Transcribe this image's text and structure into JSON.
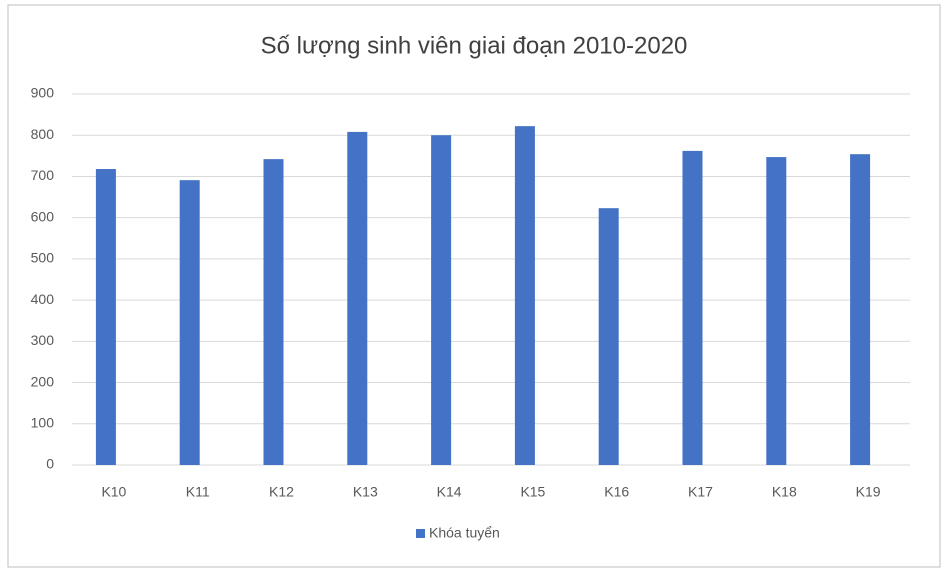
{
  "chart_data": {
    "type": "bar",
    "title": "Số lượng sinh viên giai đoạn 2010-2020",
    "categories": [
      "K10",
      "K11",
      "K12",
      "K13",
      "K14",
      "K15",
      "K16",
      "K17",
      "K18",
      "K19"
    ],
    "series": [
      {
        "name": "Khóa tuyển",
        "color": "#4472c4",
        "values": [
          718,
          691,
          742,
          808,
          800,
          822,
          623,
          762,
          747,
          754
        ]
      }
    ],
    "ylim": [
      0,
      900
    ],
    "yticks": [
      0,
      100,
      200,
      300,
      400,
      500,
      600,
      700,
      800,
      900
    ],
    "grid": true,
    "legend": "bottom"
  }
}
